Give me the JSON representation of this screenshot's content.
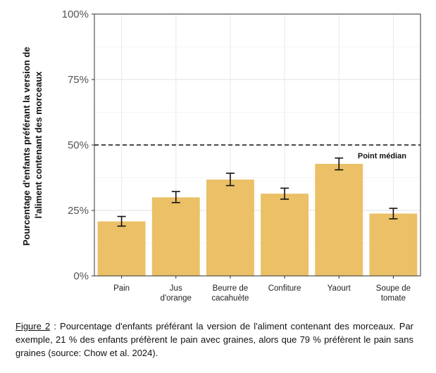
{
  "chart_data": {
    "type": "bar",
    "categories": [
      [
        "Pain"
      ],
      [
        "Jus",
        "d'orange"
      ],
      [
        "Beurre de",
        "cacahuète"
      ],
      [
        "Confiture"
      ],
      [
        "Yaourt"
      ],
      [
        "Soupe de",
        "tomate"
      ]
    ],
    "values": [
      20.8,
      30.0,
      36.8,
      31.4,
      42.8,
      23.8
    ],
    "error_low": [
      19.0,
      28.0,
      34.5,
      29.3,
      40.5,
      21.8
    ],
    "error_high": [
      22.7,
      32.2,
      39.2,
      33.5,
      45.0,
      25.8
    ],
    "ylim": [
      0,
      100
    ],
    "yticks": [
      0,
      25,
      50,
      75,
      100
    ],
    "ytick_labels": [
      "0%",
      "25%",
      "50%",
      "75%",
      "100%"
    ],
    "ylabel": [
      "Pourcentage d'enfants préférant la version de",
      "l'aliment contenant des morceaux"
    ],
    "xlabel": "",
    "grid": true,
    "bar_color": "#EBC066",
    "reference_line": {
      "y": 50,
      "style": "dashed",
      "label": "Point médian"
    }
  },
  "caption": {
    "figure_label": "Figure 2",
    "text": " : Pourcentage d'enfants préférant la version de l'aliment contenant des morceaux. Par exemple, 21 % des enfants préfèrent le pain avec graines, alors que 79 % préfèrent le pain sans graines (source: Chow et al. 2024)."
  }
}
